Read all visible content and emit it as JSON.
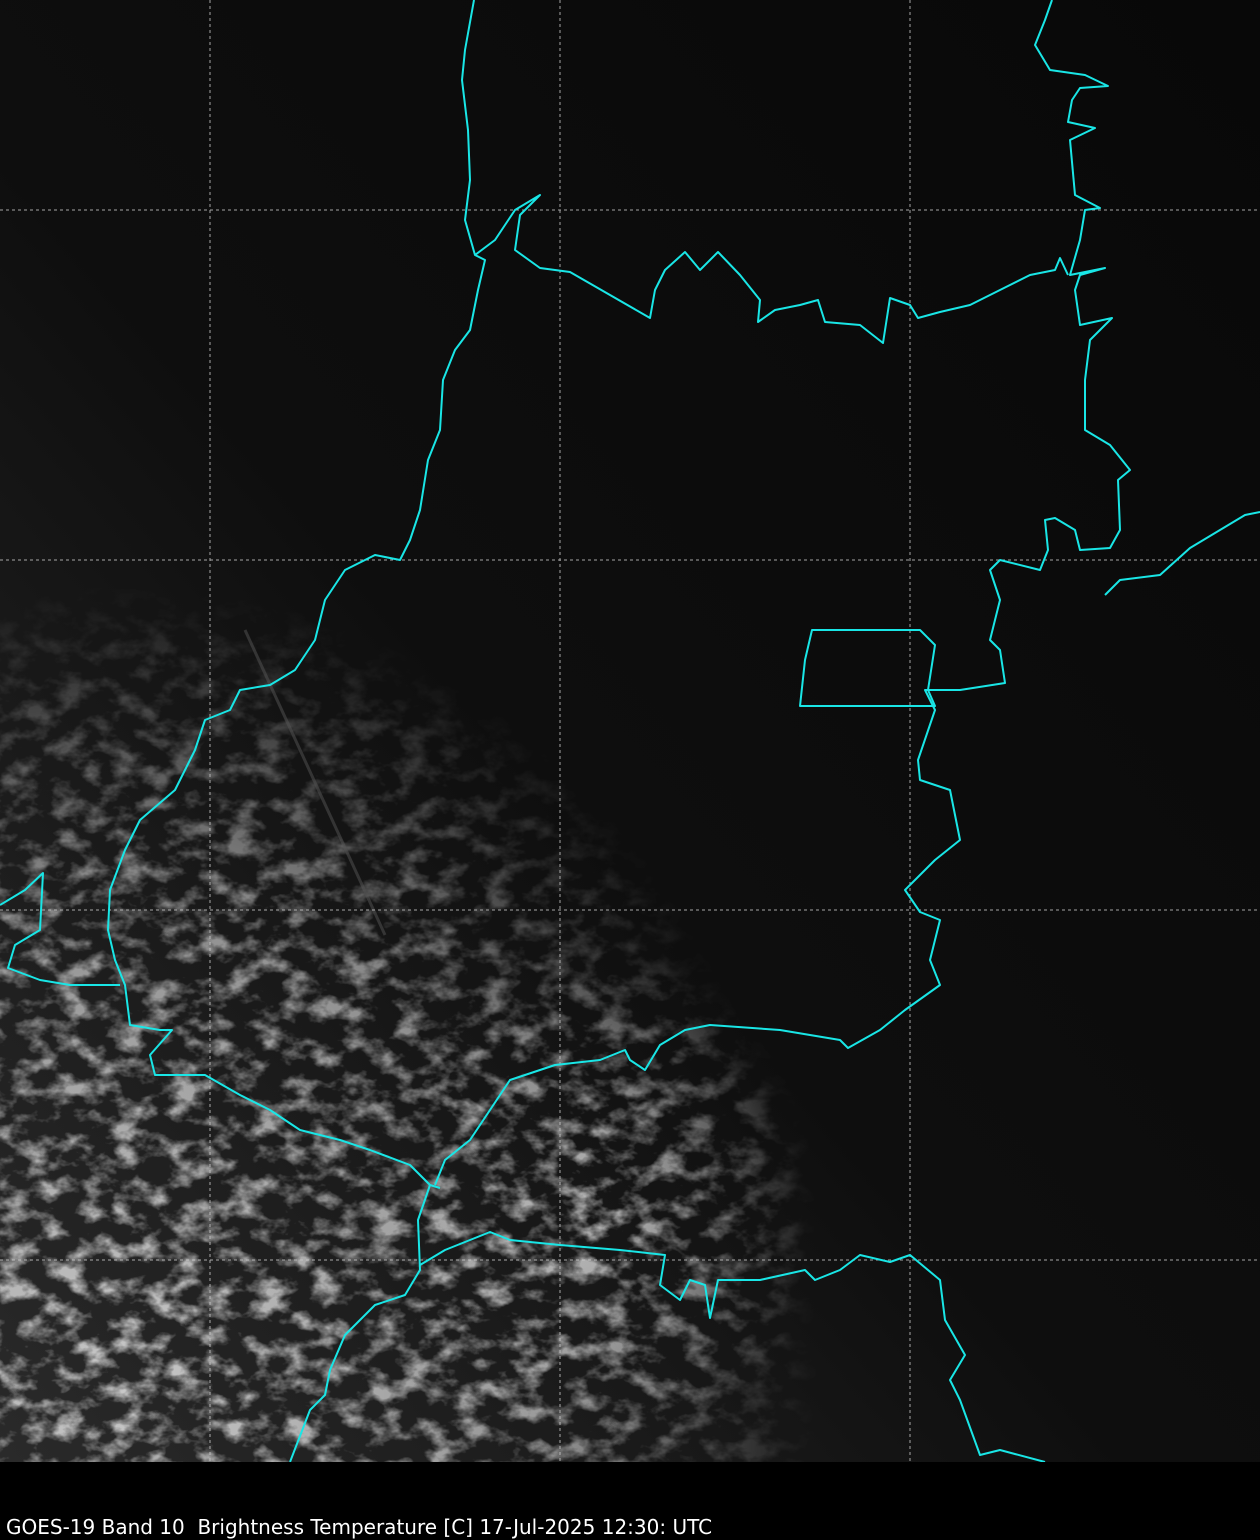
{
  "caption": "GOES-19 Band 10  Brightness Temperature [C] 17-Jul-2025 12:30: UTC",
  "colors": {
    "boundary": "#19e6e6",
    "state_outline": "#00ffff",
    "gridline": "#cccccc",
    "background": "#000000"
  },
  "image": {
    "source_type": "satellite-infrared-grayscale",
    "features": [
      "political-boundaries",
      "lat-lon-gridlines",
      "cloud-field"
    ]
  }
}
